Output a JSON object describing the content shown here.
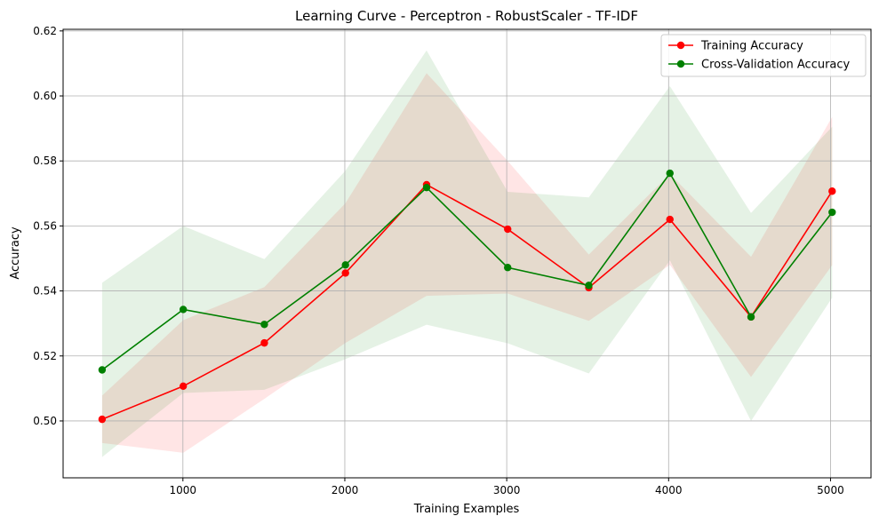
{
  "chart_data": {
    "type": "line",
    "title": "Learning Curve - Perceptron - RobustScaler - TF-IDF",
    "xlabel": "Training Examples",
    "ylabel": "Accuracy",
    "xlim": [
      260,
      5250
    ],
    "ylim": [
      0.4825,
      0.6205
    ],
    "xticks": [
      1000,
      2000,
      3000,
      4000,
      5000
    ],
    "yticks": [
      0.5,
      0.52,
      0.54,
      0.56,
      0.58,
      0.6,
      0.62
    ],
    "ytick_labels": [
      "0.50",
      "0.52",
      "0.54",
      "0.56",
      "0.58",
      "0.60",
      "0.62"
    ],
    "grid": true,
    "legend_position": "top-right",
    "x": [
      501,
      1002,
      1503,
      2004,
      2505,
      3006,
      3507,
      4008,
      4509,
      5010
    ],
    "series": [
      {
        "name": "Training Accuracy",
        "color": "#ff0000",
        "values": [
          0.5005,
          0.5107,
          0.524,
          0.5455,
          0.5727,
          0.559,
          0.541,
          0.562,
          0.532,
          0.5707
        ],
        "band_upper": [
          0.5078,
          0.531,
          0.5412,
          0.567,
          0.607,
          0.58,
          0.5512,
          0.576,
          0.5505,
          0.5935
        ],
        "band_lower": [
          0.4932,
          0.4902,
          0.5068,
          0.524,
          0.5385,
          0.5392,
          0.5308,
          0.548,
          0.5135,
          0.5479
        ]
      },
      {
        "name": "Cross-Validation Accuracy",
        "color": "#008000",
        "values": [
          0.5157,
          0.5343,
          0.5297,
          0.548,
          0.5718,
          0.5472,
          0.5417,
          0.5762,
          0.532,
          0.5642
        ],
        "band_upper": [
          0.5425,
          0.56,
          0.5498,
          0.577,
          0.614,
          0.5705,
          0.5688,
          0.603,
          0.564,
          0.5905
        ],
        "band_lower": [
          0.4889,
          0.5086,
          0.5096,
          0.519,
          0.5296,
          0.5239,
          0.5146,
          0.5494,
          0.5,
          0.5379
        ]
      }
    ]
  }
}
